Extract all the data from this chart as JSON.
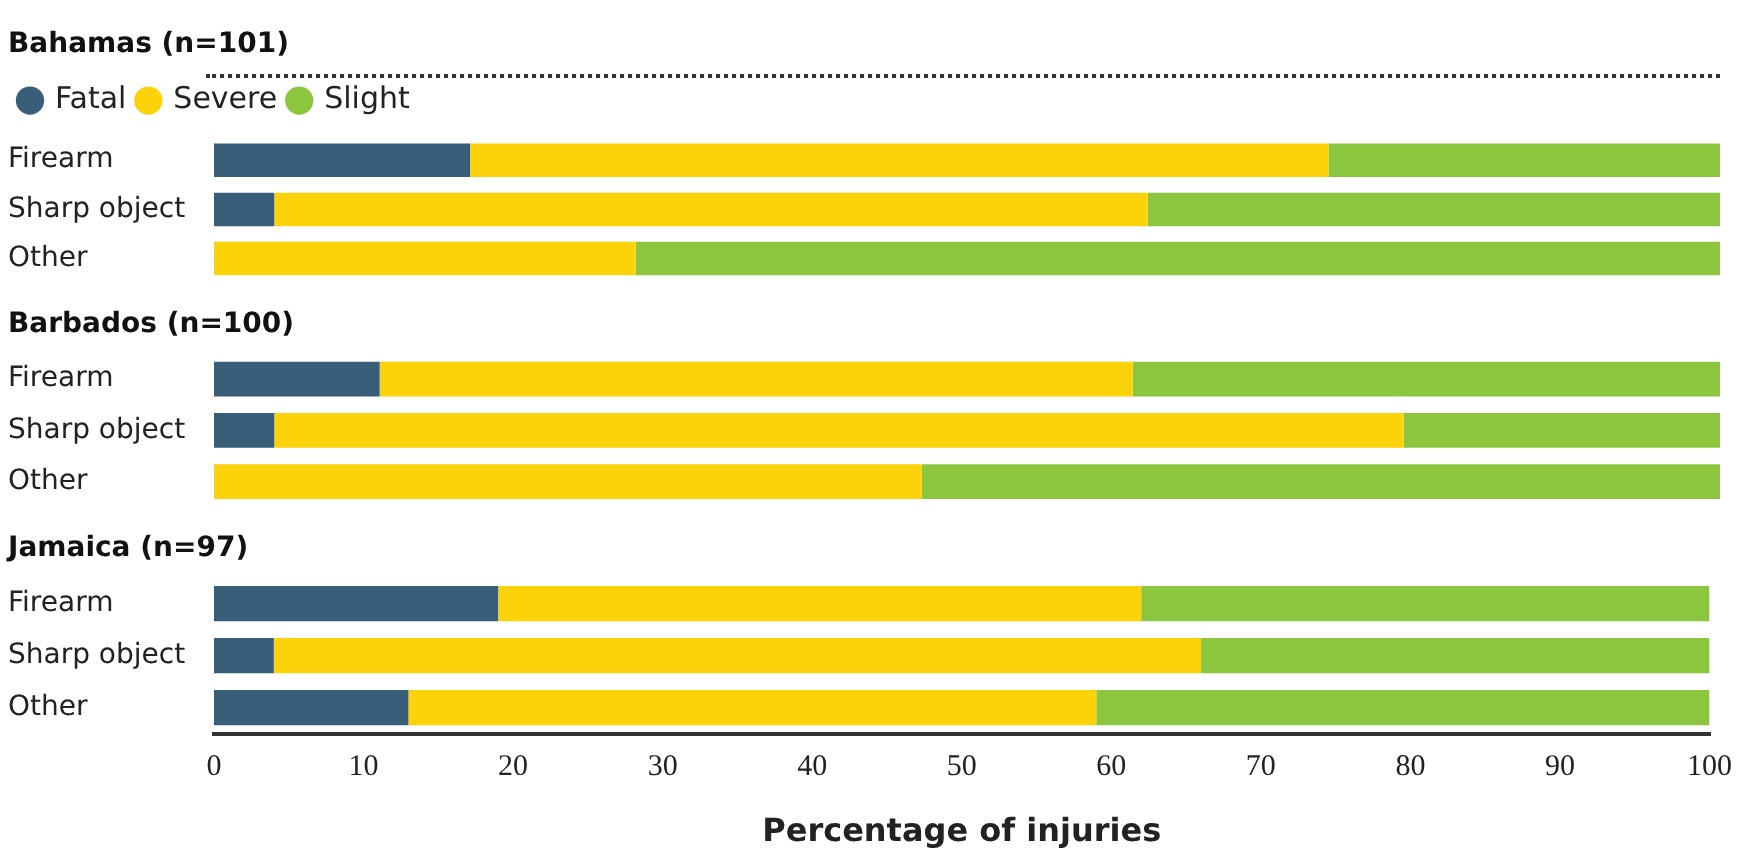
{
  "chart_data": [
    {
      "type": "bar",
      "orientation": "horizontal",
      "stacked": true,
      "title": "Bahamas (n=101)",
      "categories": [
        "Firearm",
        "Sharp object",
        "Other"
      ],
      "legend": "top left",
      "xlim": [
        0,
        100
      ],
      "xticks": [
        0,
        10,
        20,
        30,
        40,
        50,
        60,
        70,
        80,
        90,
        100
      ],
      "tick_labels": "y",
      "series": [
        {
          "name": "Fatal",
          "color": "#395e7a",
          "values": [
            17,
            4,
            0
          ]
        },
        {
          "name": "Severe",
          "color": "#fcd20a",
          "values": [
            57,
            58,
            28
          ]
        },
        {
          "name": "Slight",
          "color": "#8cc63f",
          "values": [
            26,
            38,
            72
          ]
        }
      ]
    },
    {
      "type": "bar",
      "orientation": "horizontal",
      "stacked": true,
      "title": "Barbados (n=100)",
      "categories": [
        "Firearm",
        "Sharp object",
        "Other"
      ],
      "xlim": [
        0,
        100
      ],
      "xticks": [
        0,
        10,
        20,
        30,
        40,
        50,
        60,
        70,
        80,
        90,
        100
      ],
      "tick_labels": "y",
      "series": [
        {
          "color": "#395e7a",
          "values": [
            11,
            4,
            0
          ]
        },
        {
          "color": "#fcd20a",
          "values": [
            50,
            75,
            47
          ]
        },
        {
          "color": "#8cc63f",
          "values": [
            39,
            21,
            53
          ]
        }
      ]
    },
    {
      "type": "bar",
      "orientation": "horizontal",
      "stacked": true,
      "title": "Jamaica (n=97)",
      "categories": [
        "Firearm",
        "Sharp object",
        "Other"
      ],
      "xlabel": "Percentage of injuries",
      "xlim": [
        0,
        100
      ],
      "xticks": [
        0,
        10,
        20,
        30,
        40,
        50,
        60,
        70,
        80,
        90,
        100
      ],
      "series": [
        {
          "color": "#395e7a",
          "values": [
            19,
            4,
            13
          ]
        },
        {
          "color": "#fcd20a",
          "values": [
            43,
            62,
            46
          ]
        },
        {
          "color": "#8cc63f",
          "values": [
            38,
            34,
            41
          ]
        }
      ]
    }
  ]
}
